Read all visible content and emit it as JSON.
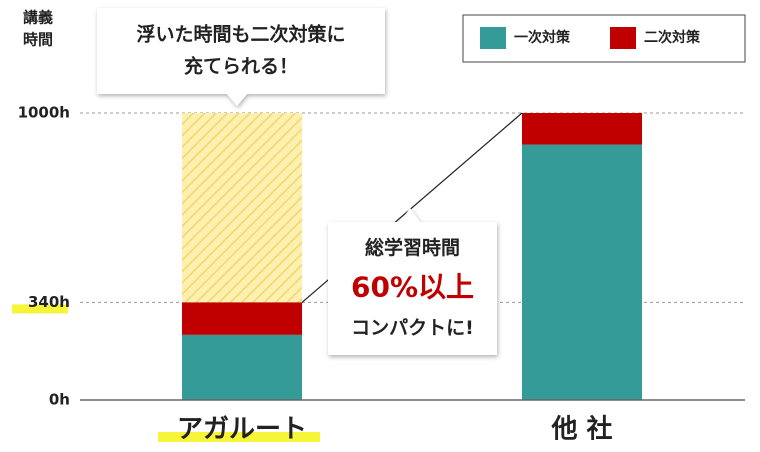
{
  "chart_data": {
    "type": "stacked_bar",
    "ylabel": [
      "講義",
      "時間"
    ],
    "categories": [
      "アガルート",
      "他 社"
    ],
    "series": [
      {
        "name": "一次対策",
        "color": "#359b99",
        "values": [
          227,
          890
        ]
      },
      {
        "name": "二次対策",
        "color": "#c00000",
        "values": [
          113,
          110
        ]
      }
    ],
    "ylim": [
      0,
      1000
    ],
    "yticks": [
      {
        "value": 0,
        "label": "0h"
      },
      {
        "value": 340,
        "label": "340h"
      },
      {
        "value": 1000,
        "label": "1000h"
      }
    ],
    "grid": true,
    "legend": "top-right",
    "annotations": [
      {
        "lines": [
          "浮いた時間も二次対策に",
          "充てられる！"
        ]
      },
      {
        "lines": [
          "総学習時間",
          "60%以上",
          "コンパクトに!"
        ]
      }
    ]
  }
}
